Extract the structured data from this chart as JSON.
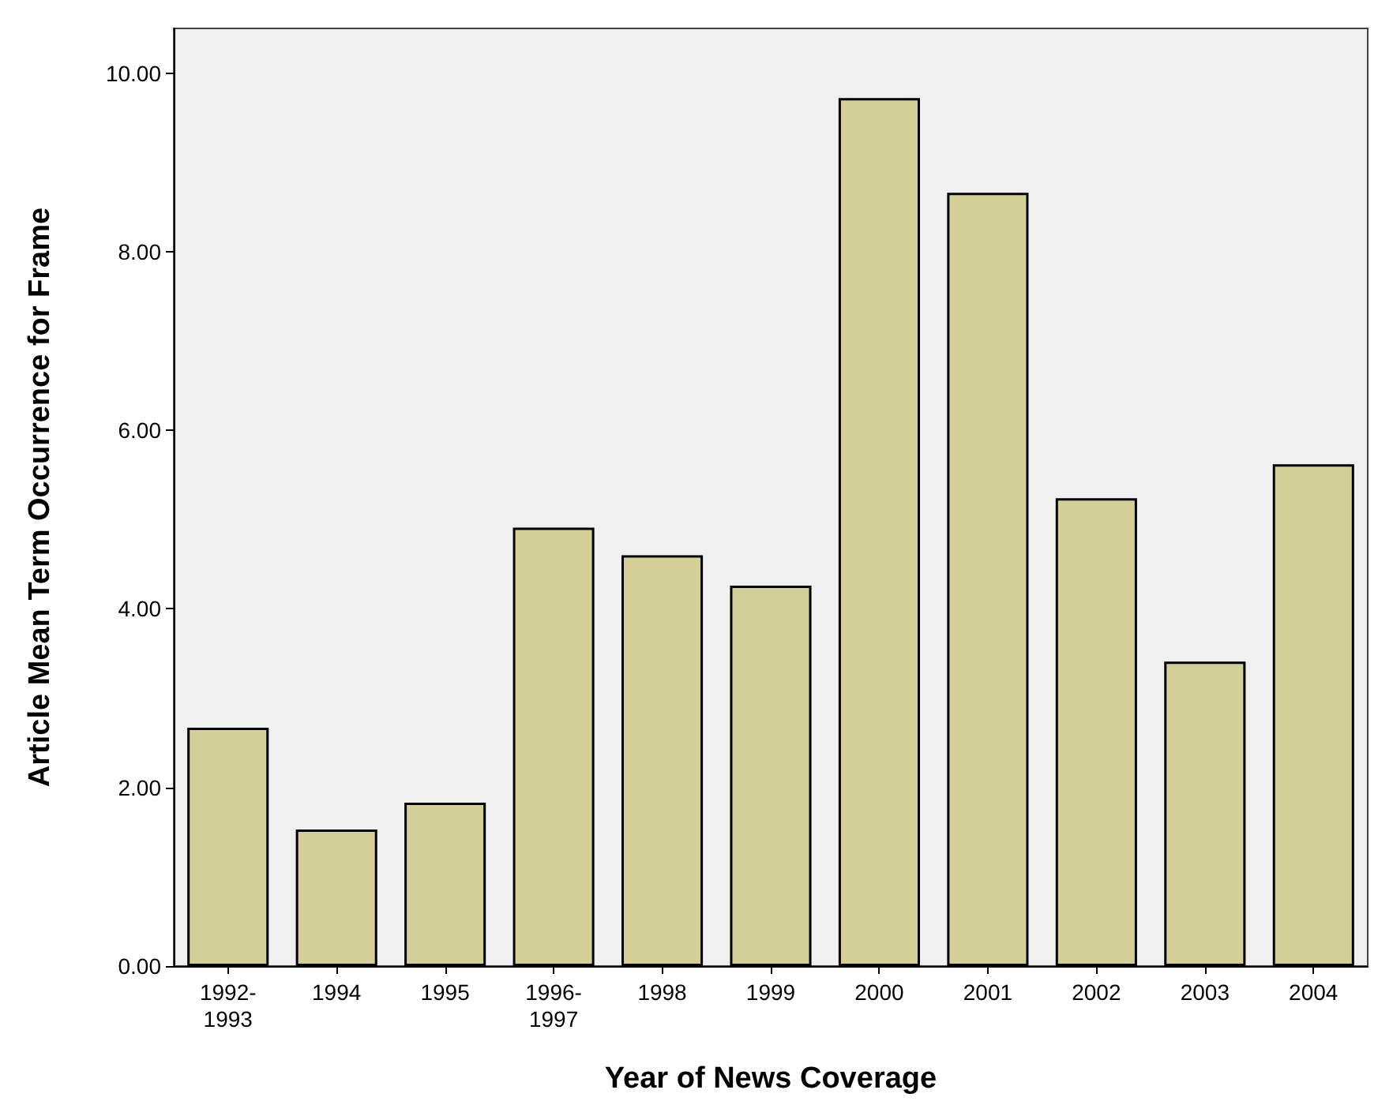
{
  "chart_data": {
    "type": "bar",
    "xlabel": "Year of News Coverage",
    "ylabel": "Article Mean Term Occurrence for Frame",
    "categories": [
      "1992-\n1993",
      "1994",
      "1995",
      "1996-\n1997",
      "1998",
      "1999",
      "2000",
      "2001",
      "2002",
      "2003",
      "2004"
    ],
    "values": [
      2.67,
      1.53,
      1.83,
      4.91,
      4.6,
      4.26,
      9.72,
      8.66,
      5.24,
      3.41,
      5.62
    ],
    "color": "#d4cf98",
    "ylim": [
      0,
      10.5
    ],
    "yticks": [
      {
        "value": 0,
        "label": "0.00"
      },
      {
        "value": 2,
        "label": "2.00"
      },
      {
        "value": 4,
        "label": "4.00"
      },
      {
        "value": 6,
        "label": "6.00"
      },
      {
        "value": 8,
        "label": "8.00"
      },
      {
        "value": 10,
        "label": "10.00"
      }
    ],
    "grid": false
  }
}
